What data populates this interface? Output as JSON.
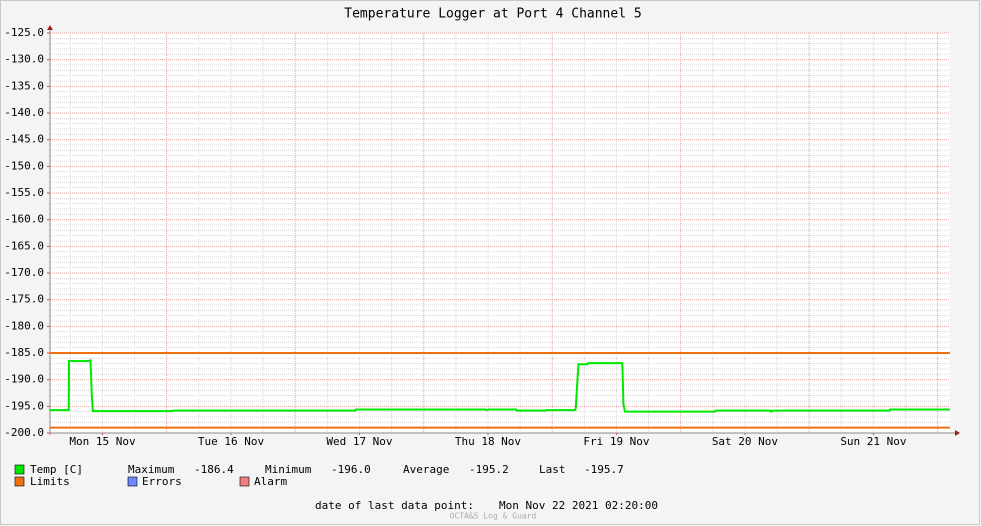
{
  "chart_data": {
    "type": "line",
    "title": "Temperature Logger at Port 4 Channel 5",
    "x": [
      2.2,
      5.7,
      5.75,
      9.7,
      9.75,
      10.0,
      10.2,
      25,
      25.1,
      59.2,
      59.3,
      83.5,
      83.6,
      84.2,
      89.3,
      89.4,
      94.7,
      94.8,
      100.3,
      100.4,
      100.9,
      102.6,
      102.7,
      109.1,
      109.3,
      109.6,
      126.4,
      126.5,
      136.8,
      136.9,
      137.3,
      159,
      159.1,
      170.3
    ],
    "series": [
      {
        "name": "Temp [C]",
        "color": "#00e800",
        "values": [
          -195.7,
          -195.7,
          -186.5,
          -186.5,
          -186.2,
          -192.7,
          -195.9,
          -195.9,
          -195.8,
          -195.8,
          -195.6,
          -195.6,
          -195.7,
          -195.6,
          -195.6,
          -195.8,
          -195.8,
          -195.7,
          -195.7,
          -195.3,
          -187.1,
          -187.1,
          -186.9,
          -186.9,
          -194.6,
          -196.0,
          -196.0,
          -195.8,
          -195.8,
          -196.0,
          -195.8,
          -195.8,
          -195.6,
          -195.6
        ]
      }
    ],
    "limits": {
      "name": "Limits",
      "color": "#f07010",
      "values": [
        -185,
        -199
      ]
    },
    "legend_extra": [
      {
        "name": "Errors",
        "color": "#7088ff"
      },
      {
        "name": "Alarm",
        "color": "#f08080"
      }
    ],
    "stats": [
      {
        "label": "Maximum",
        "value": "-186.4"
      },
      {
        "label": "Minimum",
        "value": "-196.0"
      },
      {
        "label": "Average",
        "value": "-195.2"
      },
      {
        "label": "Last",
        "value": "-195.7"
      }
    ],
    "footer": {
      "label": "date of last data point:",
      "value": "Mon Nov 22 2021 02:20:00"
    },
    "watermark": "OCTA&S Log & Guard",
    "xlim": [
      2.2,
      170.3
    ],
    "xticks": [
      {
        "value": 12,
        "label": "Mon 15 Nov"
      },
      {
        "value": 36,
        "label": "Tue 16 Nov"
      },
      {
        "value": 60,
        "label": "Wed 17 Nov"
      },
      {
        "value": 84,
        "label": "Thu 18 Nov"
      },
      {
        "value": 108,
        "label": "Fri 19 Nov"
      },
      {
        "value": 132,
        "label": "Sat 20 Nov"
      },
      {
        "value": 156,
        "label": "Sun 21 Nov"
      }
    ],
    "ylim": [
      -200,
      -125
    ],
    "yticks": [
      {
        "value": -200,
        "label": "-200.0"
      },
      {
        "value": -195,
        "label": "-195.0"
      },
      {
        "value": -190,
        "label": "-190.0"
      },
      {
        "value": -185,
        "label": "-185.0"
      },
      {
        "value": -180,
        "label": "-180.0"
      },
      {
        "value": -175,
        "label": "-175.0"
      },
      {
        "value": -170,
        "label": "-170.0"
      },
      {
        "value": -165,
        "label": "-165.0"
      },
      {
        "value": -160,
        "label": "-160.0"
      },
      {
        "value": -155,
        "label": "-155.0"
      },
      {
        "value": -150,
        "label": "-150.0"
      },
      {
        "value": -145,
        "label": "-145.0"
      },
      {
        "value": -140,
        "label": "-140.0"
      },
      {
        "value": -135,
        "label": "-135.0"
      },
      {
        "value": -130,
        "label": "-130.0"
      },
      {
        "value": -125,
        "label": "-125.0"
      }
    ],
    "grid": true
  }
}
